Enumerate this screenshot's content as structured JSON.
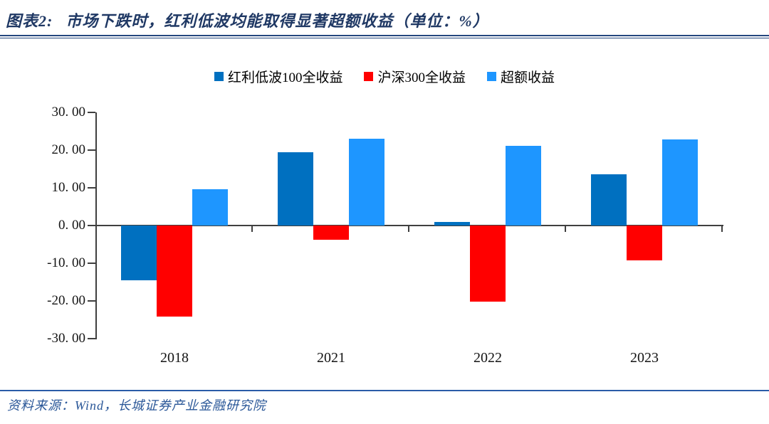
{
  "header": {
    "chart_label": "图表2:",
    "title": "市场下跌时，红利低波均能取得显著超额收益（单位：%）"
  },
  "footer": {
    "source": "资料来源：Wind，长城证券产业金融研究院"
  },
  "chart_data": {
    "type": "bar",
    "title": "市场下跌时，红利低波均能取得显著超额收益",
    "unit": "%",
    "categories": [
      "2018",
      "2021",
      "2022",
      "2023"
    ],
    "series": [
      {
        "name": "红利低波100全收益",
        "color": "#0070C0",
        "values": [
          -14.5,
          19.5,
          0.9,
          13.5
        ]
      },
      {
        "name": "沪深300全收益",
        "color": "#FF0000",
        "values": [
          -24.2,
          -3.7,
          -20.2,
          -9.3
        ]
      },
      {
        "name": "超额收益",
        "color": "#1E96FF",
        "values": [
          9.7,
          23.1,
          21.1,
          22.9
        ]
      }
    ],
    "ylim": [
      -30,
      30
    ],
    "y_tick_step": 10,
    "y_tick_labels": [
      "30. 00",
      "20. 00",
      "10. 00",
      "0. 00",
      "-10. 00",
      "-20. 00",
      "-30. 00"
    ],
    "grid": "off",
    "legend_position": "top"
  }
}
